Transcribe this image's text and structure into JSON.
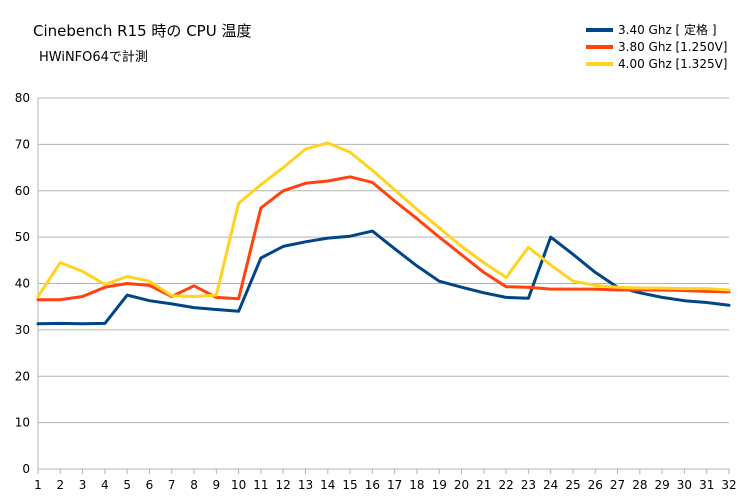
{
  "chart_data": {
    "type": "line",
    "title": "Cinebench R15 時の CPU 温度",
    "subtitle": "HWiNFO64で計測",
    "xlabel": "",
    "ylabel": "",
    "x": [
      1,
      2,
      3,
      4,
      5,
      6,
      7,
      8,
      9,
      10,
      11,
      12,
      13,
      14,
      15,
      16,
      17,
      18,
      19,
      20,
      21,
      22,
      23,
      24,
      25,
      26,
      27,
      28,
      29,
      30,
      31,
      32
    ],
    "ylim": [
      0,
      80
    ],
    "yticks": [
      0,
      10,
      20,
      30,
      40,
      50,
      60,
      70,
      80
    ],
    "grid": true,
    "legend_position": "top-right",
    "series": [
      {
        "name": "3.40 Ghz [ 定格 ]",
        "color": "#004586",
        "values": [
          31.3,
          31.4,
          31.3,
          31.4,
          37.5,
          36.3,
          35.6,
          34.8,
          34.4,
          34.0,
          45.5,
          48.0,
          49.0,
          49.8,
          50.2,
          51.3,
          47.5,
          43.8,
          40.5,
          39.2,
          38.0,
          37.0,
          36.8,
          50.0,
          46.3,
          42.4,
          39.2,
          38.0,
          37.0,
          36.3,
          35.9,
          35.3
        ]
      },
      {
        "name": "3.80 Ghz [1.250V]",
        "color": "#ff420e",
        "values": [
          36.5,
          36.5,
          37.2,
          39.2,
          40.0,
          39.6,
          37.2,
          39.5,
          37.0,
          36.7,
          56.3,
          60.0,
          61.6,
          62.1,
          63.0,
          61.8,
          57.8,
          54.0,
          50.0,
          46.2,
          42.4,
          39.3,
          39.2,
          38.8,
          38.8,
          38.8,
          38.6,
          38.6,
          38.6,
          38.5,
          38.3,
          38.2
        ]
      },
      {
        "name": "4.00 Ghz [1.325V]",
        "color": "#ffd320",
        "values": [
          37.2,
          44.5,
          42.6,
          39.8,
          41.5,
          40.5,
          37.4,
          37.2,
          37.5,
          57.3,
          61.3,
          65.0,
          69.0,
          70.3,
          68.3,
          64.4,
          60.2,
          56.0,
          52.0,
          48.0,
          44.5,
          41.3,
          47.8,
          44.0,
          40.5,
          39.6,
          39.2,
          39.0,
          39.0,
          38.9,
          38.9,
          38.6
        ]
      }
    ]
  }
}
